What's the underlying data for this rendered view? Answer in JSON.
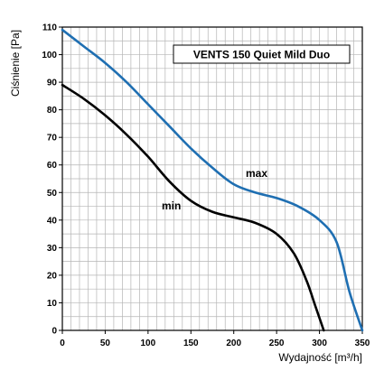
{
  "chart_data": {
    "type": "line",
    "title": "VENTS 150 Quiet Mild Duo",
    "xlabel": "Wydajność [m³/h]",
    "ylabel": "Ciśnienie [Pa]",
    "xlim": [
      0,
      350
    ],
    "ylim": [
      0,
      110
    ],
    "x_ticks": [
      "0",
      "50",
      "100",
      "150",
      "200",
      "250",
      "300",
      "350"
    ],
    "y_ticks": [
      "0",
      "10",
      "20",
      "30",
      "40",
      "50",
      "60",
      "70",
      "80",
      "90",
      "100",
      "110"
    ],
    "grid": true,
    "series": [
      {
        "name": "max",
        "color": "#1f6fb2",
        "points": [
          [
            0,
            109
          ],
          [
            25,
            103
          ],
          [
            50,
            97
          ],
          [
            75,
            90
          ],
          [
            100,
            82
          ],
          [
            125,
            74
          ],
          [
            150,
            66
          ],
          [
            175,
            59
          ],
          [
            200,
            53
          ],
          [
            225,
            50
          ],
          [
            250,
            48
          ],
          [
            275,
            45
          ],
          [
            300,
            40
          ],
          [
            320,
            32
          ],
          [
            335,
            14
          ],
          [
            350,
            0
          ]
        ]
      },
      {
        "name": "min",
        "color": "#000000",
        "points": [
          [
            0,
            89
          ],
          [
            25,
            84
          ],
          [
            50,
            78
          ],
          [
            75,
            71
          ],
          [
            100,
            63
          ],
          [
            125,
            54
          ],
          [
            150,
            47
          ],
          [
            175,
            43
          ],
          [
            200,
            41
          ],
          [
            225,
            39
          ],
          [
            250,
            35
          ],
          [
            270,
            28
          ],
          [
            285,
            18
          ],
          [
            295,
            9
          ],
          [
            305,
            0
          ]
        ]
      }
    ]
  }
}
